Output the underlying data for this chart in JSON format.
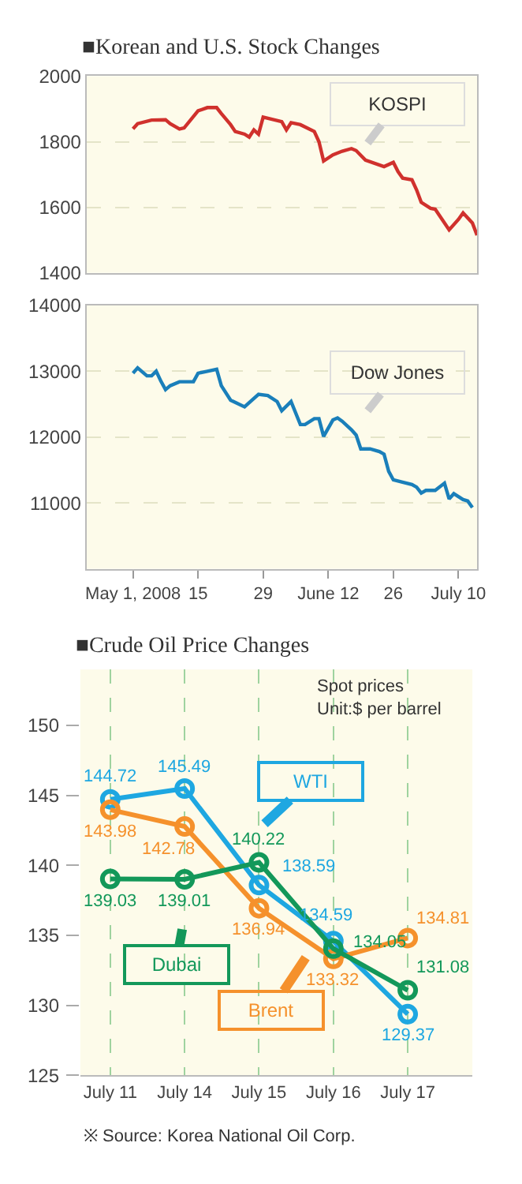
{
  "chart_data": [
    {
      "type": "line",
      "title": "■Korean and U.S. Stock Changes",
      "x": [
        "2008-05-01",
        "2008-05-02",
        "2008-05-05",
        "2008-05-08",
        "2008-05-09",
        "2008-05-11",
        "2008-05-12",
        "2008-05-15",
        "2008-05-17",
        "2008-05-19",
        "2008-05-20",
        "2008-05-22",
        "2008-05-23",
        "2008-05-25",
        "2008-05-26",
        "2008-05-27",
        "2008-05-28",
        "2008-05-29",
        "2008-06-02",
        "2008-06-03",
        "2008-06-04",
        "2008-06-06",
        "2008-06-09",
        "2008-06-10",
        "2008-06-11",
        "2008-06-13",
        "2008-06-15",
        "2008-06-17",
        "2008-06-18",
        "2008-06-20",
        "2008-06-24",
        "2008-06-26",
        "2008-06-27",
        "2008-06-28",
        "2008-06-30",
        "2008-07-01",
        "2008-07-02",
        "2008-07-04",
        "2008-07-05",
        "2008-07-08",
        "2008-07-10",
        "2008-07-11",
        "2008-07-13",
        "2008-07-14"
      ],
      "series": [
        {
          "name": "KOSPI",
          "color": "#d0312d",
          "values": [
            1839,
            1855,
            1866,
            1867,
            1855,
            1839,
            1842,
            1894,
            1904,
            1904,
            1886,
            1852,
            1831,
            1823,
            1814,
            1836,
            1823,
            1875,
            1861,
            1836,
            1858,
            1852,
            1831,
            1800,
            1741,
            1760,
            1771,
            1779,
            1773,
            1744,
            1724,
            1737,
            1709,
            1689,
            1684,
            1653,
            1615,
            1597,
            1594,
            1531,
            1563,
            1583,
            1552,
            1515
          ]
        }
      ],
      "xlim": [
        "2008-04-21",
        "2008-07-14"
      ],
      "ylim": [
        1400,
        2000
      ],
      "yticks": [
        1400,
        1600,
        1800,
        2000
      ],
      "grid": "y",
      "tick_labels": "y"
    },
    {
      "type": "line",
      "x": [
        "2008-05-01",
        "2008-05-02",
        "2008-05-04",
        "2008-05-05",
        "2008-05-06",
        "2008-05-07",
        "2008-05-08",
        "2008-05-09",
        "2008-05-11",
        "2008-05-14",
        "2008-05-15",
        "2008-05-17",
        "2008-05-19",
        "2008-05-20",
        "2008-05-22",
        "2008-05-25",
        "2008-05-28",
        "2008-05-30",
        "2008-06-01",
        "2008-06-02",
        "2008-06-04",
        "2008-06-06",
        "2008-06-07",
        "2008-06-09",
        "2008-06-10",
        "2008-06-11",
        "2008-06-13",
        "2008-06-14",
        "2008-06-15",
        "2008-06-17",
        "2008-06-18",
        "2008-06-19",
        "2008-06-21",
        "2008-06-23",
        "2008-06-24",
        "2008-06-25",
        "2008-06-26",
        "2008-06-30",
        "2008-07-01",
        "2008-07-02",
        "2008-07-03",
        "2008-07-05",
        "2008-07-07",
        "2008-07-08",
        "2008-07-09",
        "2008-07-11",
        "2008-07-12",
        "2008-07-13"
      ],
      "series": [
        {
          "name": "Dow Jones",
          "color": "#1a7fba",
          "values": [
            12970,
            13050,
            12930,
            12930,
            13000,
            12850,
            12720,
            12780,
            12840,
            12840,
            12970,
            13000,
            13030,
            12780,
            12560,
            12460,
            12650,
            12630,
            12540,
            12400,
            12540,
            12190,
            12190,
            12280,
            12280,
            12010,
            12260,
            12290,
            12240,
            12110,
            12030,
            11820,
            11820,
            11780,
            11740,
            11480,
            11350,
            11280,
            11240,
            11150,
            11190,
            11190,
            11300,
            11060,
            11140,
            11050,
            11030,
            10930
          ]
        }
      ],
      "xlim": [
        "2008-04-21",
        "2008-07-14"
      ],
      "xticks": [
        {
          "value": "2008-05-01",
          "label": "May 1, 2008"
        },
        {
          "value": "2008-05-15",
          "label": "15"
        },
        {
          "value": "2008-05-29",
          "label": "29"
        },
        {
          "value": "2008-06-12",
          "label": "June 12"
        },
        {
          "value": "2008-06-26",
          "label": "26"
        },
        {
          "value": "2008-07-10",
          "label": "July 10"
        }
      ],
      "ylim": [
        10000,
        14000
      ],
      "yticks": [
        11000,
        12000,
        13000,
        14000
      ],
      "grid": "y"
    },
    {
      "type": "line",
      "title": "■Crude Oil Price Changes",
      "categories": [
        "July 11",
        "July 14",
        "July 15",
        "July 16",
        "July 17"
      ],
      "series": [
        {
          "name": "WTI",
          "color": "#1ea7e1",
          "values": [
            144.72,
            145.49,
            138.59,
            134.59,
            129.37
          ]
        },
        {
          "name": "Brent",
          "color": "#f5912c",
          "values": [
            143.98,
            142.78,
            136.94,
            133.32,
            134.81
          ]
        },
        {
          "name": "Dubai",
          "color": "#13985a",
          "values": [
            139.03,
            139.01,
            140.22,
            134.05,
            131.08
          ]
        }
      ],
      "ylim": [
        125,
        154
      ],
      "yticks": [
        125,
        130,
        135,
        140,
        145,
        150
      ],
      "grid": "x",
      "marker": "circle",
      "data_labels": true,
      "legend": "bottom left",
      "annotations": [
        "Spot prices\nUnit:$ per barrel",
        "※ Source: Korea National Oil Corp."
      ]
    }
  ]
}
